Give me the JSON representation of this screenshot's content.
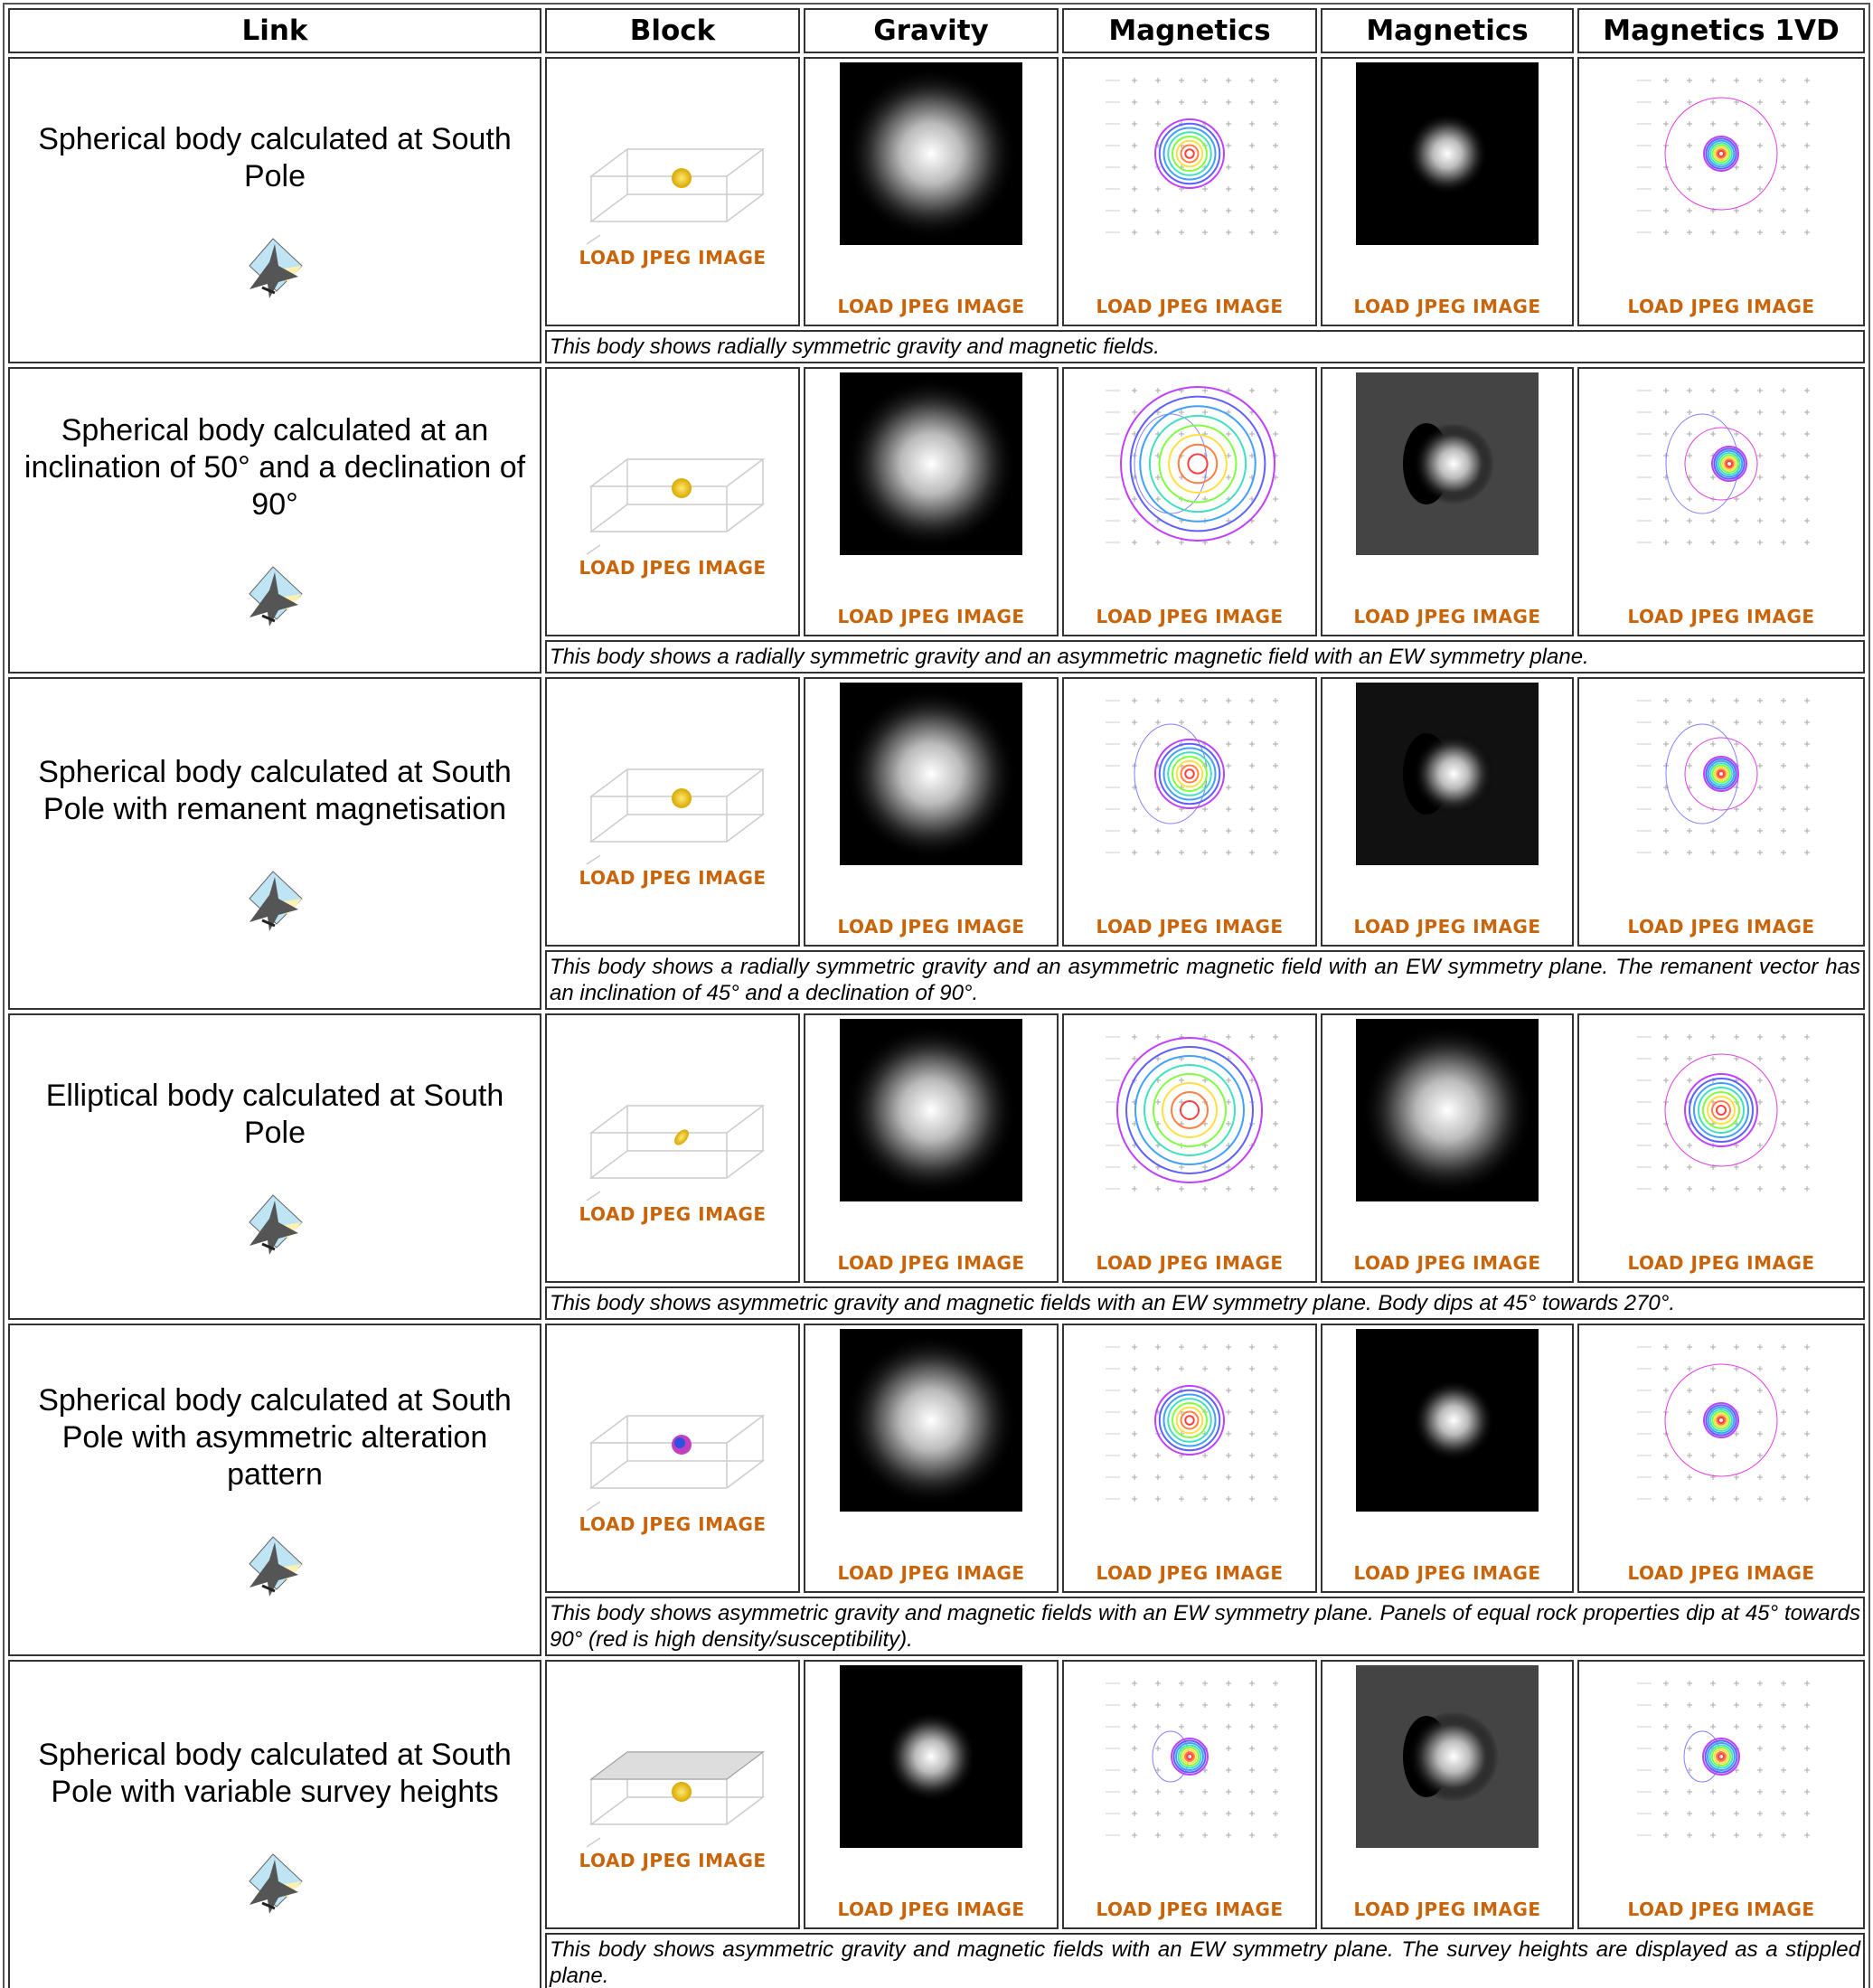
{
  "table": {
    "headers": [
      "Link",
      "Block",
      "Gravity",
      "Magnetics",
      "Magnetics",
      "Magnetics 1VD"
    ],
    "rows": [
      {
        "link": "Spherical body calculated at South Pole",
        "loads": [
          "LOAD JPEG IMAGE",
          "LOAD JPEG IMAGE",
          "LOAD JPEG IMAGE",
          "LOAD JPEG IMAGE",
          "LOAD JPEG IMAGE"
        ],
        "caption": "This body shows radially symmetric gravity and magnetic fields."
      },
      {
        "link": "Spherical body calculated at an inclination of 50° and a declination of 90°",
        "loads": [
          "LOAD JPEG IMAGE",
          "LOAD JPEG IMAGE",
          "LOAD JPEG IMAGE",
          "LOAD JPEG IMAGE",
          "LOAD JPEG IMAGE"
        ],
        "caption": "This body shows a radially symmetric gravity and an asymmetric magnetic field with an EW symmetry plane."
      },
      {
        "link": "Spherical body calculated at South Pole with remanent magnetisation",
        "loads": [
          "LOAD JPEG IMAGE",
          "LOAD JPEG IMAGE",
          "LOAD JPEG IMAGE",
          "LOAD JPEG IMAGE",
          "LOAD JPEG IMAGE"
        ],
        "caption": "This body shows a radially symmetric gravity and an asymmetric magnetic field with an EW symmetry plane. The remanent vector has an inclination of 45° and a declination of 90°."
      },
      {
        "link": "Elliptical body calculated at South Pole",
        "loads": [
          "LOAD JPEG IMAGE",
          "LOAD JPEG IMAGE",
          "LOAD JPEG IMAGE",
          "LOAD JPEG IMAGE",
          "LOAD JPEG IMAGE"
        ],
        "caption": "This body shows asymmetric gravity and magnetic fields with an EW symmetry plane. Body dips at 45° towards 270°."
      },
      {
        "link": "Spherical body calculated at South Pole with asymmetric alteration pattern",
        "loads": [
          "LOAD JPEG IMAGE",
          "LOAD JPEG IMAGE",
          "LOAD JPEG IMAGE",
          "LOAD JPEG IMAGE",
          "LOAD JPEG IMAGE"
        ],
        "caption": "This body shows asymmetric gravity and magnetic fields with an EW symmetry plane. Panels of equal rock properties dip at 45° towards 90° (red is high density/susceptibility)."
      },
      {
        "link": "Spherical body calculated at South Pole with variable survey heights",
        "loads": [
          "LOAD JPEG IMAGE",
          "LOAD JPEG IMAGE",
          "LOAD JPEG IMAGE",
          "LOAD JPEG IMAGE",
          "LOAD JPEG IMAGE"
        ],
        "caption": "This body shows asymmetric gravity and magnetic fields with an EW symmetry plane. The survey heights are displayed as a stippled plane."
      }
    ]
  }
}
